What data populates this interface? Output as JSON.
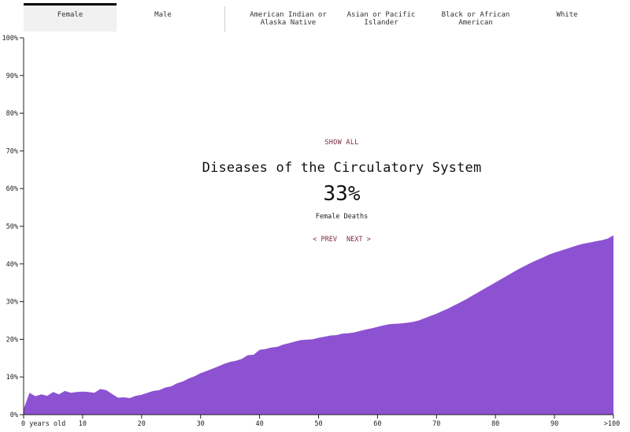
{
  "tabs": [
    {
      "label": "Female",
      "active": true
    },
    {
      "label": "Male",
      "active": false
    },
    {
      "label": "American Indian or Alaska Native",
      "active": false
    },
    {
      "label": "Asian or Pacific Islander",
      "active": false
    },
    {
      "label": "Black or African American",
      "active": false
    },
    {
      "label": "White",
      "active": false
    }
  ],
  "overlay": {
    "show_all": "SHOW ALL",
    "title": "Diseases of the Circulatory System",
    "percent": "33%",
    "subtitle": "Female Deaths",
    "prev": "< PREV",
    "next": "NEXT >"
  },
  "chart_data": {
    "type": "area",
    "color": "#8c52d1",
    "xlim": [
      0,
      100
    ],
    "ylim": [
      0,
      100
    ],
    "ytick_labels": [
      "0%",
      "10%",
      "20%",
      "30%",
      "40%",
      "50%",
      "60%",
      "70%",
      "80%",
      "90%",
      "100%"
    ],
    "xtick_labels": [
      "0 years old",
      "10",
      "20",
      "30",
      "40",
      "50",
      "60",
      "70",
      "80",
      "90",
      ">100"
    ],
    "x": [
      0,
      1,
      2,
      3,
      4,
      5,
      6,
      7,
      8,
      9,
      10,
      11,
      12,
      13,
      14,
      15,
      16,
      17,
      18,
      19,
      20,
      21,
      22,
      23,
      24,
      25,
      26,
      27,
      28,
      29,
      30,
      31,
      32,
      33,
      34,
      35,
      36,
      37,
      38,
      39,
      40,
      41,
      42,
      43,
      44,
      45,
      46,
      47,
      48,
      49,
      50,
      51,
      52,
      53,
      54,
      55,
      56,
      57,
      58,
      59,
      60,
      61,
      62,
      63,
      64,
      65,
      66,
      67,
      68,
      69,
      70,
      71,
      72,
      73,
      74,
      75,
      76,
      77,
      78,
      79,
      80,
      81,
      82,
      83,
      84,
      85,
      86,
      87,
      88,
      89,
      90,
      91,
      92,
      93,
      94,
      95,
      96,
      97,
      98,
      99,
      100
    ],
    "values": [
      1.5,
      5.8,
      4.9,
      5.4,
      5.0,
      6.0,
      5.4,
      6.3,
      5.8,
      6.0,
      6.1,
      6.0,
      5.8,
      6.8,
      6.5,
      5.5,
      4.5,
      4.6,
      4.4,
      5.0,
      5.3,
      5.8,
      6.3,
      6.5,
      7.2,
      7.5,
      8.3,
      8.8,
      9.6,
      10.2,
      11.0,
      11.6,
      12.2,
      12.8,
      13.5,
      14.0,
      14.3,
      14.8,
      15.8,
      15.9,
      17.2,
      17.4,
      17.8,
      18.0,
      18.6,
      19.0,
      19.4,
      19.8,
      19.9,
      20.0,
      20.4,
      20.7,
      21.0,
      21.1,
      21.5,
      21.6,
      21.8,
      22.2,
      22.6,
      22.9,
      23.3,
      23.7,
      24.0,
      24.1,
      24.2,
      24.4,
      24.6,
      25.0,
      25.6,
      26.2,
      26.8,
      27.5,
      28.2,
      29.0,
      29.8,
      30.6,
      31.5,
      32.4,
      33.3,
      34.2,
      35.1,
      36.0,
      36.9,
      37.8,
      38.7,
      39.5,
      40.3,
      41.0,
      41.7,
      42.4,
      43.0,
      43.5,
      44.0,
      44.5,
      45.0,
      45.4,
      45.7,
      46.0,
      46.3,
      46.7,
      47.6
    ]
  }
}
